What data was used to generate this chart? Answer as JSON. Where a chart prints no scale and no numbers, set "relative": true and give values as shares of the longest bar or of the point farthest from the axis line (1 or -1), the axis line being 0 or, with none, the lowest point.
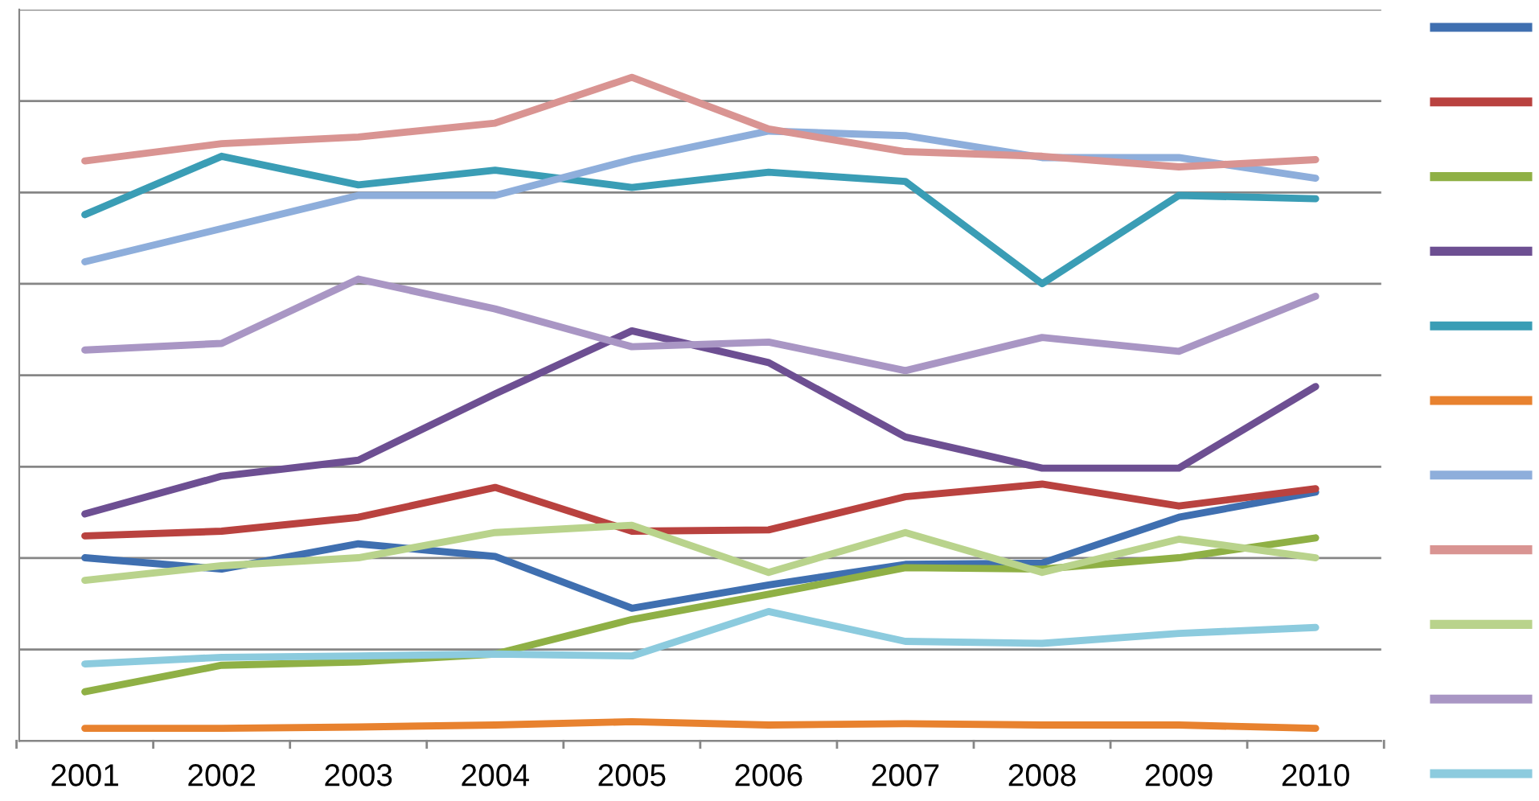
{
  "chart_data": {
    "type": "line",
    "relative": true,
    "grid": "y",
    "line_style": "solid",
    "marker": "none",
    "categories": [
      "2001",
      "2002",
      "2003",
      "2004",
      "2005",
      "2006",
      "2007",
      "2008",
      "2009",
      "2010"
    ],
    "series": [
      {
        "color": "#3f6fb0",
        "values": [
          0.276,
          0.259,
          0.297,
          0.278,
          0.2,
          0.235,
          0.266,
          0.268,
          0.337,
          0.375
        ]
      },
      {
        "color": "#b9423f",
        "values": [
          0.309,
          0.316,
          0.337,
          0.382,
          0.316,
          0.318,
          0.368,
          0.387,
          0.354,
          0.38
        ]
      },
      {
        "color": "#8fb045",
        "values": [
          0.074,
          0.114,
          0.119,
          0.131,
          0.183,
          0.221,
          0.261,
          0.259,
          0.276,
          0.306
        ]
      },
      {
        "color": "#6d4f92",
        "values": [
          0.342,
          0.399,
          0.423,
          0.523,
          0.618,
          0.57,
          0.458,
          0.411,
          0.411,
          0.534
        ]
      },
      {
        "color": "#3a9db5",
        "values": [
          0.793,
          0.881,
          0.838,
          0.86,
          0.834,
          0.857,
          0.843,
          0.689,
          0.822,
          0.817
        ]
      },
      {
        "color": "#e8822f",
        "values": [
          0.019,
          0.019,
          0.021,
          0.024,
          0.029,
          0.024,
          0.026,
          0.024,
          0.024,
          0.019
        ]
      },
      {
        "color": "#8eaedb",
        "values": [
          0.722,
          0.772,
          0.822,
          0.822,
          0.876,
          0.919,
          0.912,
          0.879,
          0.879,
          0.848
        ]
      },
      {
        "color": "#d99492",
        "values": [
          0.874,
          0.9,
          0.91,
          0.931,
          1,
          0.922,
          0.888,
          0.881,
          0.865,
          0.876
        ]
      },
      {
        "color": "#b9d38c",
        "values": [
          0.242,
          0.264,
          0.276,
          0.314,
          0.325,
          0.254,
          0.314,
          0.254,
          0.304,
          0.276
        ]
      },
      {
        "color": "#a996c4",
        "values": [
          0.589,
          0.599,
          0.696,
          0.651,
          0.594,
          0.601,
          0.558,
          0.608,
          0.587,
          0.67
        ]
      },
      {
        "color": "#8ccbde",
        "values": [
          0.116,
          0.126,
          0.128,
          0.131,
          0.128,
          0.195,
          0.15,
          0.147,
          0.162,
          0.171
        ]
      }
    ]
  }
}
